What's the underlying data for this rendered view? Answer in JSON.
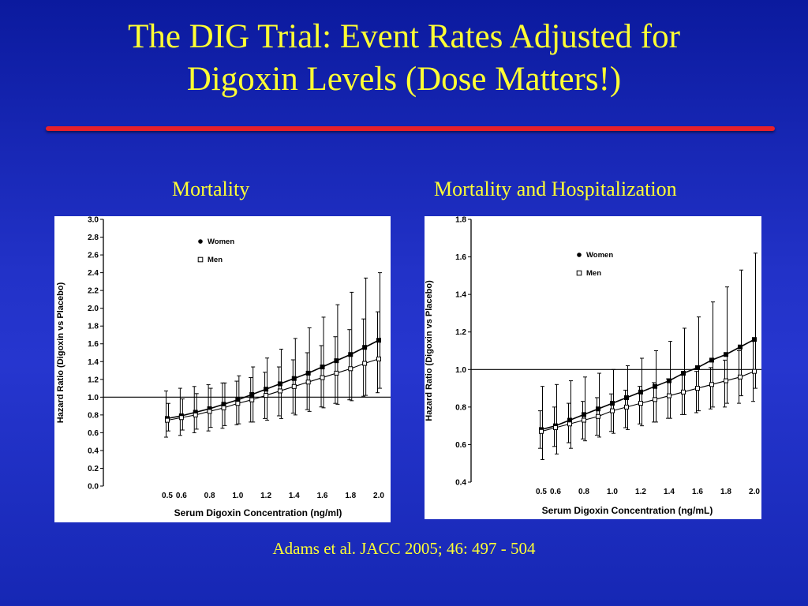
{
  "slide": {
    "title_line1": "The DIG Trial: Event Rates Adjusted for",
    "title_line2": "Digoxin Levels (Dose Matters!)",
    "citation": "Adams et al. JACC 2005; 46: 497 - 504",
    "colors": {
      "title": "#ffff33",
      "rule": "#e8202a",
      "background": "#2232c8"
    }
  },
  "chart_data": [
    {
      "type": "line",
      "caption": "Mortality",
      "xlabel": "Serum Digoxin Concentration (ng/ml)",
      "ylabel": "Hazard Ratio (Digoxin vs Placebo)",
      "ylim": [
        0.0,
        3.0
      ],
      "y_ticks": [
        "0.0",
        "0.2",
        "0.4",
        "0.6",
        "0.8",
        "1.0",
        "1.2",
        "1.4",
        "1.6",
        "1.8",
        "2.0",
        "2.2",
        "2.4",
        "2.6",
        "2.8",
        "3.0"
      ],
      "x_ticks": [
        "0.5",
        "0.6",
        "0.8",
        "1.0",
        "1.2",
        "1.4",
        "1.6",
        "1.8",
        "2.0"
      ],
      "reference_line": 1.0,
      "legend": [
        "Women",
        "Men"
      ],
      "legend_position": "top-left",
      "x": [
        0.5,
        0.6,
        0.7,
        0.8,
        0.9,
        1.0,
        1.1,
        1.2,
        1.3,
        1.4,
        1.5,
        1.6,
        1.7,
        1.8,
        1.9,
        2.0
      ],
      "series": [
        {
          "name": "Women",
          "marker": "filled-square",
          "values": [
            0.76,
            0.79,
            0.83,
            0.87,
            0.92,
            0.97,
            1.03,
            1.09,
            1.15,
            1.21,
            1.27,
            1.34,
            1.41,
            1.48,
            1.56,
            1.64
          ],
          "lower": [
            0.62,
            0.63,
            0.64,
            0.66,
            0.68,
            0.7,
            0.72,
            0.74,
            0.76,
            0.8,
            0.84,
            0.88,
            0.92,
            0.96,
            1.02,
            1.1
          ],
          "upper": [
            0.93,
            0.98,
            1.04,
            1.1,
            1.16,
            1.24,
            1.34,
            1.44,
            1.54,
            1.66,
            1.78,
            1.9,
            2.04,
            2.18,
            2.34,
            2.4
          ]
        },
        {
          "name": "Men",
          "marker": "open-square",
          "values": [
            0.74,
            0.77,
            0.8,
            0.84,
            0.88,
            0.93,
            0.97,
            1.02,
            1.07,
            1.12,
            1.17,
            1.22,
            1.27,
            1.32,
            1.38,
            1.43
          ],
          "lower": [
            0.55,
            0.57,
            0.6,
            0.62,
            0.65,
            0.69,
            0.72,
            0.76,
            0.79,
            0.82,
            0.86,
            0.89,
            0.93,
            0.97,
            1.01,
            1.05
          ],
          "upper": [
            1.07,
            1.1,
            1.12,
            1.14,
            1.16,
            1.18,
            1.22,
            1.28,
            1.34,
            1.42,
            1.5,
            1.58,
            1.68,
            1.76,
            1.88,
            1.96
          ]
        }
      ]
    },
    {
      "type": "line",
      "caption": "Mortality and Hospitalization",
      "xlabel": "Serum Digoxin Concentration (ng/mL)",
      "ylabel": "Hazard Ratio (Digoxin vs Placebo)",
      "ylim": [
        0.4,
        1.8
      ],
      "y_ticks": [
        "0.4",
        "0.6",
        "0.8",
        "1.0",
        "1.2",
        "1.4",
        "1.6",
        "1.8"
      ],
      "x_ticks": [
        "0.5",
        "0.6",
        "0.8",
        "1.0",
        "1.2",
        "1.4",
        "1.6",
        "1.8",
        "2.0"
      ],
      "reference_line": 1.0,
      "legend": [
        "Women",
        "Men"
      ],
      "legend_position": "top-left",
      "x": [
        0.5,
        0.6,
        0.7,
        0.8,
        0.9,
        1.0,
        1.1,
        1.2,
        1.3,
        1.4,
        1.5,
        1.6,
        1.7,
        1.8,
        1.9,
        2.0
      ],
      "series": [
        {
          "name": "Women",
          "marker": "filled-square",
          "values": [
            0.68,
            0.7,
            0.73,
            0.76,
            0.79,
            0.82,
            0.85,
            0.88,
            0.91,
            0.94,
            0.98,
            1.01,
            1.05,
            1.08,
            1.12,
            1.16
          ],
          "lower": [
            0.52,
            0.55,
            0.58,
            0.62,
            0.64,
            0.66,
            0.68,
            0.7,
            0.72,
            0.74,
            0.76,
            0.78,
            0.8,
            0.82,
            0.86,
            0.9
          ],
          "upper": [
            0.91,
            0.92,
            0.94,
            0.96,
            0.98,
            1.0,
            1.02,
            1.06,
            1.1,
            1.15,
            1.22,
            1.28,
            1.36,
            1.44,
            1.53,
            1.62
          ]
        },
        {
          "name": "Men",
          "marker": "open-square",
          "values": [
            0.67,
            0.69,
            0.71,
            0.73,
            0.75,
            0.78,
            0.8,
            0.82,
            0.84,
            0.86,
            0.88,
            0.9,
            0.92,
            0.94,
            0.96,
            0.99
          ],
          "lower": [
            0.58,
            0.59,
            0.61,
            0.63,
            0.65,
            0.67,
            0.69,
            0.71,
            0.72,
            0.74,
            0.76,
            0.77,
            0.79,
            0.8,
            0.82,
            0.83
          ],
          "upper": [
            0.78,
            0.8,
            0.82,
            0.83,
            0.85,
            0.87,
            0.89,
            0.91,
            0.93,
            0.95,
            0.97,
            0.99,
            1.01,
            1.05,
            1.1,
            1.15
          ]
        }
      ]
    }
  ]
}
